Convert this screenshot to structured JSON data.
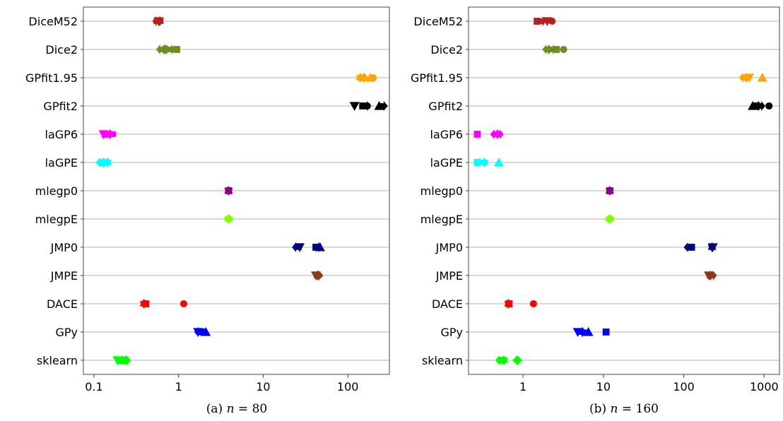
{
  "chart_data": [
    {
      "type": "scatter",
      "caption_prefix": "(a) ",
      "caption_var": "n",
      "caption_eq": " = 80",
      "xscale": "log",
      "xlim": [
        0.075,
        310
      ],
      "xticks": [
        0.1,
        1,
        10,
        100
      ],
      "xtick_labels": [
        "0.1",
        "1",
        "10",
        "100"
      ],
      "categories": [
        "DiceM52",
        "Dice2",
        "GPfit1.95",
        "GPfit2",
        "laGP6",
        "laGPE",
        "mlegp0",
        "mlegpE",
        "JMP0",
        "JMPE",
        "DACE",
        "GPy",
        "sklearn"
      ],
      "grid": "horizontal",
      "points": [
        {
          "category": "DiceM52",
          "color": "#B22222",
          "markers": [
            {
              "shape": "triangle-down",
              "x": 0.58
            },
            {
              "shape": "arrow-right",
              "x": 0.58
            },
            {
              "shape": "star",
              "x": 0.6
            },
            {
              "shape": "arrow-left",
              "x": 0.56
            }
          ]
        },
        {
          "category": "Dice2",
          "color": "#6B8E23",
          "markers": [
            {
              "shape": "arrow-left",
              "x": 0.62
            },
            {
              "shape": "diamond",
              "x": 0.68
            },
            {
              "shape": "star",
              "x": 0.72
            },
            {
              "shape": "arrow-right",
              "x": 0.8
            },
            {
              "shape": "square",
              "x": 0.95
            }
          ]
        },
        {
          "category": "GPfit1.95",
          "color": "#FFA500",
          "markers": [
            {
              "shape": "star",
              "x": 140
            },
            {
              "shape": "arrow-left",
              "x": 145
            },
            {
              "shape": "diamond",
              "x": 155
            },
            {
              "shape": "triangle-up",
              "x": 185
            },
            {
              "shape": "circle",
              "x": 200
            }
          ]
        },
        {
          "category": "GPfit2",
          "color": "#000000",
          "markers": [
            {
              "shape": "triangle-down",
              "x": 120
            },
            {
              "shape": "square",
              "x": 150
            },
            {
              "shape": "arrow-right",
              "x": 165
            },
            {
              "shape": "circle",
              "x": 170
            },
            {
              "shape": "triangle-up",
              "x": 235
            },
            {
              "shape": "arrow-right",
              "x": 260
            }
          ]
        },
        {
          "category": "laGP6",
          "color": "#FF00FF",
          "markers": [
            {
              "shape": "triangle-down",
              "x": 0.13
            },
            {
              "shape": "square",
              "x": 0.135
            },
            {
              "shape": "arrow-right",
              "x": 0.15
            },
            {
              "shape": "star",
              "x": 0.155
            },
            {
              "shape": "arrow-left",
              "x": 0.16
            }
          ]
        },
        {
          "category": "laGPE",
          "color": "#00FFFF",
          "markers": [
            {
              "shape": "arrow-left",
              "x": 0.12
            },
            {
              "shape": "square",
              "x": 0.125
            },
            {
              "shape": "diamond",
              "x": 0.13
            },
            {
              "shape": "star",
              "x": 0.145
            }
          ]
        },
        {
          "category": "mlegp0",
          "color": "#8B008B",
          "markers": [
            {
              "shape": "star",
              "x": 3.9
            },
            {
              "shape": "square",
              "x": 3.9
            }
          ]
        },
        {
          "category": "mlegpE",
          "color": "#7FFF00",
          "markers": [
            {
              "shape": "star",
              "x": 3.9
            },
            {
              "shape": "diamond",
              "x": 3.9
            }
          ]
        },
        {
          "category": "JMP0",
          "color": "#000080",
          "markers": [
            {
              "shape": "arrow-left",
              "x": 25
            },
            {
              "shape": "triangle-down",
              "x": 27
            },
            {
              "shape": "square",
              "x": 42
            },
            {
              "shape": "arrow-right",
              "x": 44
            },
            {
              "shape": "triangle-up",
              "x": 47
            }
          ]
        },
        {
          "category": "JMPE",
          "color": "#8B3A1A",
          "markers": [
            {
              "shape": "triangle-down",
              "x": 42
            },
            {
              "shape": "star",
              "x": 44
            },
            {
              "shape": "diamond",
              "x": 45
            }
          ]
        },
        {
          "category": "DACE",
          "color": "#FF0000",
          "markers": [
            {
              "shape": "star",
              "x": 0.39
            },
            {
              "shape": "square",
              "x": 0.41
            },
            {
              "shape": "circle",
              "x": 1.15
            }
          ]
        },
        {
          "category": "GPy",
          "color": "#0000FF",
          "markers": [
            {
              "shape": "triangle-down",
              "x": 1.7
            },
            {
              "shape": "arrow-left",
              "x": 1.75
            },
            {
              "shape": "square",
              "x": 1.95
            },
            {
              "shape": "triangle-up",
              "x": 2.1
            }
          ]
        },
        {
          "category": "sklearn",
          "color": "#00FF00",
          "markers": [
            {
              "shape": "triangle-down",
              "x": 0.19
            },
            {
              "shape": "triangle-up",
              "x": 0.22
            },
            {
              "shape": "square",
              "x": 0.235
            },
            {
              "shape": "diamond",
              "x": 0.24
            }
          ]
        }
      ]
    },
    {
      "type": "scatter",
      "caption_prefix": "(b) ",
      "caption_var": "n",
      "caption_eq": " = 160",
      "xscale": "log",
      "xlim": [
        0.21,
        1550
      ],
      "xticks": [
        1,
        10,
        100,
        1000
      ],
      "xtick_labels": [
        "1",
        "10",
        "100",
        "1000"
      ],
      "categories": [
        "DiceM52",
        "Dice2",
        "GPfit1.95",
        "GPfit2",
        "laGP6",
        "laGPE",
        "mlegp0",
        "mlegpE",
        "JMP0",
        "JMPE",
        "DACE",
        "GPy",
        "sklearn"
      ],
      "grid": "horizontal",
      "points": [
        {
          "category": "DiceM52",
          "color": "#B22222",
          "markers": [
            {
              "shape": "square",
              "x": 1.5
            },
            {
              "shape": "arrow-right",
              "x": 1.7
            },
            {
              "shape": "triangle-down",
              "x": 2.0
            },
            {
              "shape": "circle",
              "x": 2.3
            }
          ]
        },
        {
          "category": "Dice2",
          "color": "#6B8E23",
          "markers": [
            {
              "shape": "arrow-left",
              "x": 2.0
            },
            {
              "shape": "star",
              "x": 2.1
            },
            {
              "shape": "arrow-right",
              "x": 2.3
            },
            {
              "shape": "square",
              "x": 2.6
            },
            {
              "shape": "circle",
              "x": 3.2
            }
          ]
        },
        {
          "category": "GPfit1.95",
          "color": "#FFA500",
          "markers": [
            {
              "shape": "arrow-left",
              "x": 560
            },
            {
              "shape": "star",
              "x": 600
            },
            {
              "shape": "triangle-down",
              "x": 650
            },
            {
              "shape": "triangle-up",
              "x": 950
            }
          ]
        },
        {
          "category": "GPfit2",
          "color": "#000000",
          "markers": [
            {
              "shape": "triangle-up",
              "x": 720
            },
            {
              "shape": "square",
              "x": 800
            },
            {
              "shape": "star",
              "x": 850
            },
            {
              "shape": "arrow-right",
              "x": 900
            },
            {
              "shape": "circle",
              "x": 1150
            }
          ]
        },
        {
          "category": "laGP6",
          "color": "#FF00FF",
          "markers": [
            {
              "shape": "square",
              "x": 0.27
            },
            {
              "shape": "arrow-left",
              "x": 0.45
            },
            {
              "shape": "star",
              "x": 0.48
            },
            {
              "shape": "arrow-right",
              "x": 0.5
            }
          ]
        },
        {
          "category": "laGPE",
          "color": "#00FFFF",
          "markers": [
            {
              "shape": "square",
              "x": 0.27
            },
            {
              "shape": "arrow-left",
              "x": 0.3
            },
            {
              "shape": "star",
              "x": 0.33
            },
            {
              "shape": "triangle-up",
              "x": 0.5
            }
          ]
        },
        {
          "category": "mlegp0",
          "color": "#8B008B",
          "markers": [
            {
              "shape": "star",
              "x": 12
            },
            {
              "shape": "square",
              "x": 12
            }
          ]
        },
        {
          "category": "mlegpE",
          "color": "#7FFF00",
          "markers": [
            {
              "shape": "star",
              "x": 12
            },
            {
              "shape": "diamond",
              "x": 12
            }
          ]
        },
        {
          "category": "JMP0",
          "color": "#000080",
          "markers": [
            {
              "shape": "arrow-left",
              "x": 115
            },
            {
              "shape": "square",
              "x": 125
            },
            {
              "shape": "star",
              "x": 225
            },
            {
              "shape": "triangle-down",
              "x": 230
            }
          ]
        },
        {
          "category": "JMPE",
          "color": "#8B3A1A",
          "markers": [
            {
              "shape": "triangle-down",
              "x": 205
            },
            {
              "shape": "star",
              "x": 215
            },
            {
              "shape": "arrow-right",
              "x": 225
            }
          ]
        },
        {
          "category": "DACE",
          "color": "#FF0000",
          "markers": [
            {
              "shape": "star",
              "x": 0.66
            },
            {
              "shape": "square",
              "x": 0.67
            },
            {
              "shape": "circle",
              "x": 1.35
            }
          ]
        },
        {
          "category": "GPy",
          "color": "#0000FF",
          "markers": [
            {
              "shape": "triangle-down",
              "x": 4.8
            },
            {
              "shape": "arrow-right",
              "x": 5.3
            },
            {
              "shape": "star",
              "x": 5.5
            },
            {
              "shape": "triangle-up",
              "x": 6.5
            },
            {
              "shape": "square",
              "x": 10.8
            }
          ]
        },
        {
          "category": "sklearn",
          "color": "#00FF00",
          "markers": [
            {
              "shape": "arrow-left",
              "x": 0.52
            },
            {
              "shape": "square",
              "x": 0.55
            },
            {
              "shape": "star",
              "x": 0.58
            },
            {
              "shape": "diamond",
              "x": 0.85
            }
          ]
        }
      ]
    }
  ]
}
